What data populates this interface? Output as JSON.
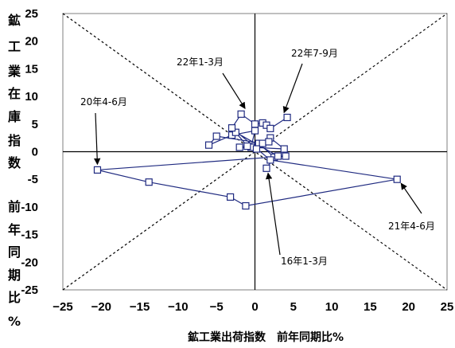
{
  "chart_data": {
    "type": "scatter",
    "title": "",
    "xlabel": "鉱工業出荷指数　前年同期比%",
    "ylabel_lines": [
      "鉱",
      "工",
      "業",
      "在",
      "庫",
      "指",
      "数",
      "",
      "前",
      "年",
      "同",
      "期",
      "比",
      "%"
    ],
    "xlim": [
      -25,
      25
    ],
    "ylim": [
      -25,
      25
    ],
    "x_ticks": [
      -25,
      -20,
      -15,
      -10,
      -5,
      0,
      5,
      10,
      15,
      20,
      25
    ],
    "y_ticks": [
      25,
      20,
      15,
      10,
      5,
      0,
      -5,
      -10,
      -15,
      -20,
      -25
    ],
    "x_tick_labels": [
      "−25",
      "−20",
      "−15",
      "−10",
      "−5",
      "0",
      "5",
      "10",
      "15",
      "20",
      "25"
    ],
    "y_tick_labels": [
      "25",
      "20",
      "15",
      "10",
      "5",
      "0",
      "-5",
      "-10",
      "-15",
      "-20",
      "-25"
    ],
    "reference_lines": [
      "y = x",
      "y = -x"
    ],
    "line_color": "#1f2a80",
    "series": [
      {
        "x": [
          1.5,
          2.5,
          0.5,
          2.0,
          3.8,
          -0.5,
          0.0,
          -3.0,
          -6.0,
          -5.0,
          1.0,
          0.2,
          -2.0,
          1.8,
          -1.0,
          -2.5,
          3.0,
          4.0,
          -20.5,
          -13.8,
          -3.2,
          -1.2,
          18.5,
          2.0,
          -3.0,
          -1.8,
          0.0,
          1.0,
          1.5,
          2.0,
          4.2
        ],
        "y": [
          -3.0,
          -1.0,
          1.5,
          2.5,
          0.5,
          0.8,
          3.8,
          3.0,
          1.2,
          2.8,
          1.5,
          0.5,
          0.8,
          1.8,
          1.0,
          3.5,
          -0.8,
          -0.8,
          -3.3,
          -5.5,
          -8.2,
          -9.8,
          -5.0,
          -1.5,
          4.3,
          6.8,
          5.0,
          5.2,
          4.8,
          4.2,
          6.2
        ]
      }
    ],
    "annotations": [
      {
        "text": "20年4-6月",
        "point_index": 18
      },
      {
        "text": "22年1-3月",
        "point_index": 25
      },
      {
        "text": "22年7-9月",
        "point_index": 30
      },
      {
        "text": "21年4-6月",
        "point_index": 22
      },
      {
        "text": "16年1-3月",
        "point_index": 0
      }
    ]
  }
}
